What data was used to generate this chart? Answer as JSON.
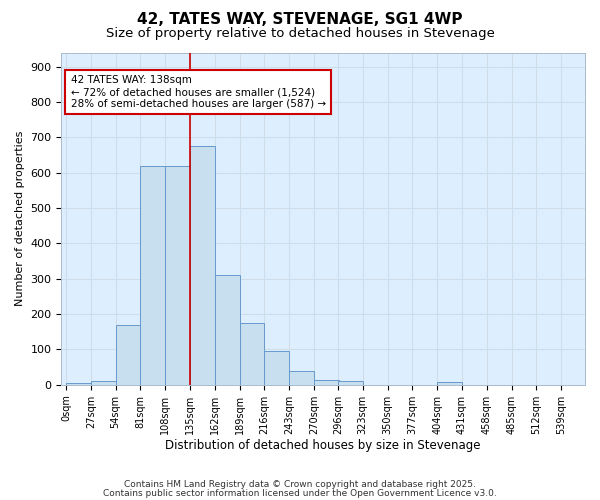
{
  "title": "42, TATES WAY, STEVENAGE, SG1 4WP",
  "subtitle": "Size of property relative to detached houses in Stevenage",
  "xlabel": "Distribution of detached houses by size in Stevenage",
  "ylabel": "Number of detached properties",
  "bar_left_edges": [
    0,
    27,
    54,
    81,
    108,
    135,
    162,
    189,
    216,
    243,
    270,
    296,
    323,
    350,
    377,
    404,
    431,
    458,
    485,
    512
  ],
  "bar_heights": [
    5,
    12,
    170,
    620,
    620,
    675,
    310,
    175,
    97,
    40,
    15,
    12,
    0,
    0,
    0,
    8,
    0,
    0,
    0,
    0
  ],
  "bin_width": 27,
  "bar_color": "#c8dff0",
  "bar_edge_color": "#6699cc",
  "grid_color": "#d0dde8",
  "bg_color": "#ddeeff",
  "fig_bg_color": "#ffffff",
  "vline_x": 135,
  "vline_color": "#cc0000",
  "tick_labels": [
    "0sqm",
    "27sqm",
    "54sqm",
    "81sqm",
    "108sqm",
    "135sqm",
    "162sqm",
    "189sqm",
    "216sqm",
    "243sqm",
    "270sqm",
    "296sqm",
    "323sqm",
    "350sqm",
    "377sqm",
    "404sqm",
    "431sqm",
    "458sqm",
    "485sqm",
    "512sqm",
    "539sqm"
  ],
  "tick_positions": [
    0,
    27,
    54,
    81,
    108,
    135,
    162,
    189,
    216,
    243,
    270,
    296,
    323,
    350,
    377,
    404,
    431,
    458,
    485,
    512,
    539
  ],
  "ylim": [
    0,
    940
  ],
  "xlim": [
    -5,
    565
  ],
  "annotation_text": "42 TATES WAY: 138sqm\n← 72% of detached houses are smaller (1,524)\n28% of semi-detached houses are larger (587) →",
  "annotation_box_color": "#ffffff",
  "annotation_box_edge_color": "#cc0000",
  "footer_line1": "Contains HM Land Registry data © Crown copyright and database right 2025.",
  "footer_line2": "Contains public sector information licensed under the Open Government Licence v3.0.",
  "title_fontsize": 11,
  "subtitle_fontsize": 9.5,
  "footer_fontsize": 6.5,
  "yticks": [
    0,
    100,
    200,
    300,
    400,
    500,
    600,
    700,
    800,
    900
  ]
}
